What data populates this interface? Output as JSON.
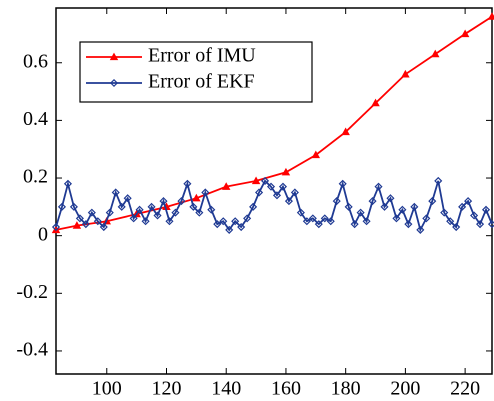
{
  "chart_data": {
    "type": "line",
    "xlim": [
      83,
      229
    ],
    "xticks": [
      100,
      120,
      140,
      160,
      180,
      200,
      220
    ],
    "ylim": [
      -0.48,
      0.79
    ],
    "yticks": [
      -0.4,
      -0.2,
      0,
      0.2,
      0.4,
      0.6
    ],
    "legend": "upper left",
    "series": [
      {
        "name": "Error of IMU",
        "color": "#ff0000",
        "marker": "triangle",
        "x": [
          83,
          90,
          100,
          110,
          120,
          130,
          140,
          150,
          160,
          170,
          180,
          190,
          200,
          210,
          220,
          229
        ],
        "values": [
          0.02,
          0.035,
          0.05,
          0.075,
          0.1,
          0.13,
          0.17,
          0.19,
          0.22,
          0.28,
          0.36,
          0.46,
          0.56,
          0.63,
          0.7,
          0.76
        ]
      },
      {
        "name": "Error of EKF",
        "color": "#1f3a93",
        "marker": "diamond",
        "x": [
          83,
          85,
          87,
          89,
          91,
          93,
          95,
          97,
          99,
          101,
          103,
          105,
          107,
          109,
          111,
          113,
          115,
          117,
          119,
          121,
          123,
          125,
          127,
          129,
          131,
          133,
          135,
          137,
          139,
          141,
          143,
          145,
          147,
          149,
          151,
          153,
          155,
          157,
          159,
          161,
          163,
          165,
          167,
          169,
          171,
          173,
          175,
          177,
          179,
          181,
          183,
          185,
          187,
          189,
          191,
          193,
          195,
          197,
          199,
          201,
          203,
          205,
          207,
          209,
          211,
          213,
          215,
          217,
          219,
          221,
          223,
          225,
          227,
          229
        ],
        "values": [
          0.03,
          0.1,
          0.18,
          0.1,
          0.06,
          0.04,
          0.08,
          0.05,
          0.03,
          0.08,
          0.15,
          0.1,
          0.13,
          0.06,
          0.09,
          0.05,
          0.1,
          0.07,
          0.12,
          0.05,
          0.08,
          0.12,
          0.18,
          0.1,
          0.08,
          0.15,
          0.09,
          0.04,
          0.05,
          0.02,
          0.05,
          0.03,
          0.06,
          0.1,
          0.15,
          0.19,
          0.17,
          0.14,
          0.17,
          0.12,
          0.15,
          0.08,
          0.05,
          0.06,
          0.04,
          0.06,
          0.05,
          0.12,
          0.18,
          0.1,
          0.04,
          0.08,
          0.05,
          0.12,
          0.17,
          0.1,
          0.13,
          0.06,
          0.09,
          0.04,
          0.1,
          0.02,
          0.06,
          0.12,
          0.19,
          0.08,
          0.05,
          0.03,
          0.1,
          0.12,
          0.07,
          0.04,
          0.09,
          0.04
        ]
      }
    ]
  }
}
